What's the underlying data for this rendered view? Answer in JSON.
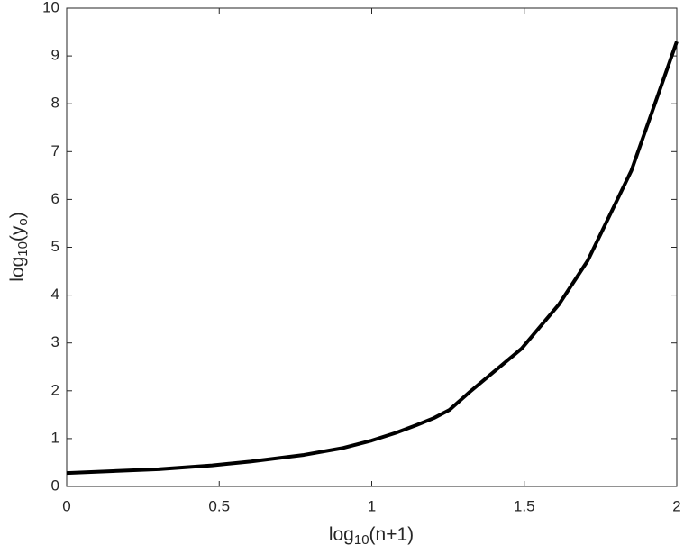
{
  "chart_data": {
    "type": "line",
    "xlabel": [
      "log",
      "10",
      "(n+1)"
    ],
    "ylabel": [
      "log",
      "10",
      "(y",
      "o",
      ")"
    ],
    "x": [
      0,
      0.301,
      0.477,
      0.602,
      0.778,
      0.903,
      1.0,
      1.079,
      1.146,
      1.204,
      1.255,
      1.322,
      1.491,
      1.613,
      1.708,
      1.851,
      2.0
    ],
    "series": [
      {
        "color": "#000000",
        "values": [
          0.28,
          0.36,
          0.44,
          0.52,
          0.66,
          0.8,
          0.96,
          1.12,
          1.28,
          1.43,
          1.6,
          1.98,
          2.88,
          3.8,
          4.72,
          6.6,
          9.3
        ]
      }
    ],
    "xlim": [
      0,
      2
    ],
    "ylim": [
      0,
      10
    ],
    "xticks": [
      0,
      0.5,
      1,
      1.5,
      2
    ],
    "yticks": [
      0,
      1,
      2,
      3,
      4,
      5,
      6,
      7,
      8,
      9,
      10
    ],
    "grid": false
  }
}
